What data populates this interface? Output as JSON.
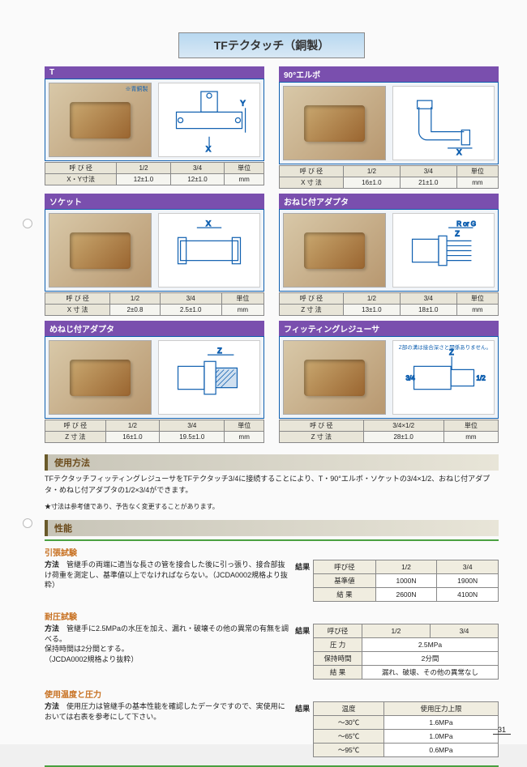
{
  "title": "TFテクタッチ（銅製）",
  "products": [
    {
      "name": "T",
      "note": "※青銅製",
      "svg": "<svg viewBox='0 0 100 80'><g stroke='#1060b0' fill='none' stroke-width='1.2'><rect x='10' y='30' width='80' height='20'/><rect x='40' y='5' width='20' height='25'/><circle cx='15' cy='40' r='3'/><circle cx='85' cy='40' r='3'/><circle cx='50' cy='10' r='3'/><line x1='50' y1='60' x2='50' y2='72'/><text x='46' y='78' font-size='9' fill='#1060b0'>X</text><line x1='94' y1='25' x2='94' y2='55'/><text x='88' y='22' font-size='9' fill='#1060b0'>Y</text></g></svg>",
      "columns": [
        "呼 び 径",
        "1/2",
        "3/4",
        "単位"
      ],
      "row_label": "X・Y寸法",
      "values": [
        "12±1.0",
        "12±1.0",
        "mm"
      ]
    },
    {
      "name": "90°エルボ",
      "svg": "<svg viewBox='0 0 100 80'><g stroke='#1060b0' fill='none' stroke-width='1.2'><path d='M20 20 v30 a10 10 0 0 0 10 10 h40'/><path d='M35 20 v30 h40'/><rect x='18' y='12' width='18' height='10'/><rect x='72' y='48' width='10' height='18'/><line x1='55' y1='70' x2='85' y2='70'/><text x='66' y='78' font-size='9' fill='#1060b0'>X</text></g></svg>",
      "columns": [
        "呼 び 径",
        "1/2",
        "3/4",
        "単位"
      ],
      "row_label": "X 寸 法",
      "values": [
        "16±1.0",
        "21±1.0",
        "mm"
      ]
    },
    {
      "name": "ソケット",
      "svg": "<svg viewBox='0 0 100 80'><g stroke='#1060b0' fill='none' stroke-width='1.2'><rect x='15' y='28' width='70' height='24'/><rect x='12' y='24' width='10' height='32'/><rect x='78' y='24' width='10' height='32'/><line x1='35' y1='12' x2='65' y2='12'/><text x='46' y='10' font-size='9' fill='#1060b0'>X</text></g></svg>",
      "columns": [
        "呼 び 径",
        "1/2",
        "3/4",
        "単位"
      ],
      "row_label": "X 寸 法",
      "values": [
        "2±0.8",
        "2.5±1.0",
        "mm"
      ]
    },
    {
      "name": "おねじ付アダプタ",
      "svg": "<svg viewBox='0 0 100 80'><g stroke='#1060b0' fill='none' stroke-width='1.2'><rect x='12' y='26' width='32' height='28'/><rect x='44' y='22' width='10' height='36'/><path d='M54 28 h30 M54 34 h30 M54 40 h30 M54 46 h30 M54 52 h30'/><line x1='56' y1='12' x2='86' y2='12'/><text x='66' y='10' font-size='8' fill='#1060b0'>R or G</text><text x='64' y='22' font-size='9' fill='#1060b0'>Z</text></g></svg>",
      "columns": [
        "呼 び 径",
        "1/2",
        "3/4",
        "単位"
      ],
      "row_label": "Z 寸 法",
      "values": [
        "13±1.0",
        "18±1.0",
        "mm"
      ]
    },
    {
      "name": "めねじ付アダプタ",
      "svg": "<svg viewBox='0 0 100 80'><g stroke='#1060b0' fill='none' stroke-width='1.2'><rect x='12' y='26' width='32' height='28'/><rect x='44' y='20' width='14' height='40'/><rect x='58' y='28' width='26' height='24' fill='#d0e0f0'/><path d='M62 30 l-4 4 M68 30 l-10 10 M74 30 l-16 16 M80 30 l-20 20 M82 34 l-18 18' stroke-width='0.8'/><line x1='48' y1='12' x2='80' y2='12'/><text x='60' y='10' font-size='9' fill='#1060b0'>Z</text></g></svg>",
      "columns": [
        "呼 び 径",
        "1/2",
        "3/4",
        "単位"
      ],
      "row_label": "Z 寸 法",
      "values": [
        "16±1.0",
        "19.5±1.0",
        "mm"
      ]
    },
    {
      "name": "フィッティングレジューサ",
      "note_top": "Z部の溝は接合深さと関係ありません。",
      "svg": "<svg viewBox='0 0 100 80'><g stroke='#1060b0' fill='none' stroke-width='1.2'><rect x='14' y='26' width='45' height='28'/><rect x='59' y='30' width='28' height='20'/><line x1='60' y1='30' x2='60' y2='14'/><text x='57' y='12' font-size='9' fill='#1060b0'>Z</text><text x='4' y='43' font-size='8' fill='#1060b0'>3/4</text><text x='90' y='43' font-size='8' fill='#1060b0'>1/2</text></g></svg>",
      "columns": [
        "呼 び 径",
        "3/4×1/2",
        "単位"
      ],
      "row_label": "Z 寸 法",
      "values": [
        "28±1.0",
        "mm"
      ],
      "wide": true
    }
  ],
  "usage": {
    "head": "使用方法",
    "text": "TFテクタッチフィッティングレジューサをTFテクタッチ3/4に接続することにより、T・90°エルボ・ソケットの3/4×1/2、おねじ付アダプタ・めねじ付アダプタの1/2×3/4ができます。",
    "star": "★寸法は参考値であり、予告なく変更することがあります。"
  },
  "perf": {
    "head": "性能",
    "tensile": {
      "title": "引張試験",
      "method_label": "方法",
      "method": "管継手の両端に適当な長さの管を接合した後に引っ張り、接合部抜け荷重を測定し、基準値以上でなければならない。（JCDA0002規格より抜粋）",
      "result_label": "結果",
      "table": {
        "headers": [
          "呼び径",
          "1/2",
          "3/4"
        ],
        "rows": [
          [
            "基準値",
            "1000N",
            "1900N"
          ],
          [
            "結 果",
            "2600N",
            "4100N"
          ]
        ]
      }
    },
    "pressure": {
      "title": "耐圧試験",
      "method_label": "方法",
      "method": "管継手に2.5MPaの水圧を加え、漏れ・破壊その他の異常の有無を調べる。\n保持時間は2分間とする。\n（JCDA0002規格より抜粋）",
      "result_label": "結果",
      "table": {
        "headers": [
          "呼び径",
          "1/2",
          "3/4"
        ],
        "rows": [
          [
            "圧 力",
            "2.5MPa"
          ],
          [
            "保持時間",
            "2分間"
          ],
          [
            "結 果",
            "漏れ、破壊、その他の異常なし"
          ]
        ],
        "span2": true
      }
    },
    "temp": {
      "title": "使用温度と圧力",
      "method_label": "方法",
      "method": "使用圧力は管継手の基本性能を確認したデータですので、実使用においては右表を参考にして下さい。",
      "result_label": "結果",
      "table": {
        "headers": [
          "温度",
          "使用圧力上限"
        ],
        "rows": [
          [
            "～30℃",
            "1.6MPa"
          ],
          [
            "～65℃",
            "1.0MPa"
          ],
          [
            "～95℃",
            "0.6MPa"
          ]
        ]
      }
    }
  },
  "page_num": "31",
  "colors": {
    "purple": "#7a4fae",
    "blue": "#1060b0",
    "orange": "#c77020",
    "olive": "#6a5a2a"
  }
}
